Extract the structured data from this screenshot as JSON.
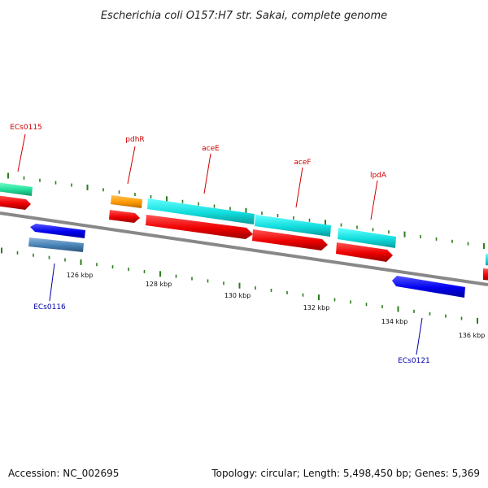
{
  "title": "Escherichia coli O157:H7 str. Sakai, complete genome",
  "footer": {
    "accession": "Accession: NC_002695",
    "summary": "Topology: circular; Length: 5,498,450 bp; Genes: 5,369"
  },
  "colors": {
    "backbone": "#888888",
    "tick": "#2e7d1e",
    "tick_label": "#111111",
    "label_top": "#cc0000",
    "label_bottom": "#0000aa",
    "cds": "#ee0000",
    "gene_cyan": "#11dddd",
    "gene_orange": "#ff9900",
    "gene_green": "#22dd99",
    "gene_blue": "#0000ee",
    "gene_steel": "#4682b4"
  },
  "ticks": [
    {
      "label": "126 kbp"
    },
    {
      "label": "128 kbp"
    },
    {
      "label": "130 kbp"
    },
    {
      "label": "132 kbp"
    },
    {
      "label": "134 kbp"
    },
    {
      "label": "136 kbp"
    }
  ],
  "labels_top": [
    {
      "text": "ECs0115"
    },
    {
      "text": "pdhR"
    },
    {
      "text": "aceE"
    },
    {
      "text": "aceF"
    },
    {
      "text": "lpdA"
    }
  ],
  "labels_bottom": [
    {
      "text": "ECs0116"
    },
    {
      "text": "ECs0121"
    }
  ]
}
